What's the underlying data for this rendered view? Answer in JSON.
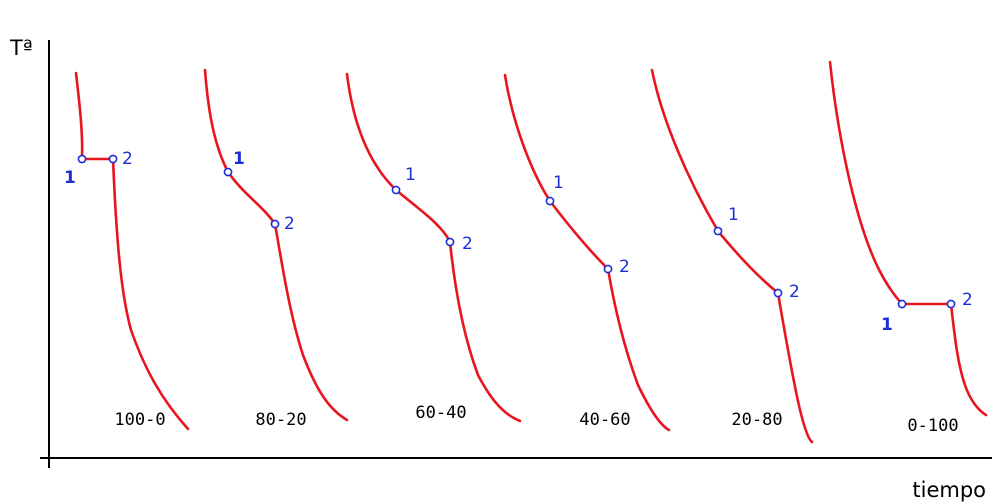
{
  "chart_data": {
    "type": "line",
    "ylabel": "Tª",
    "xlabel": "tiempo",
    "series": [
      {
        "name": "100-0"
      },
      {
        "name": "80-20"
      },
      {
        "name": "60-40"
      },
      {
        "name": "40-60"
      },
      {
        "name": "20-80"
      },
      {
        "name": "0-100"
      }
    ]
  }
}
